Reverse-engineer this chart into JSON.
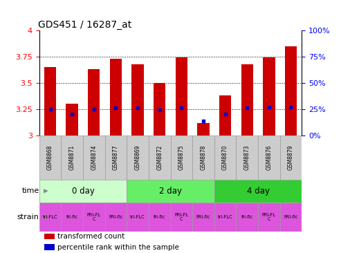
{
  "title": "GDS451 / 16287_at",
  "samples": [
    "GSM8868",
    "GSM8871",
    "GSM8874",
    "GSM8877",
    "GSM8869",
    "GSM8872",
    "GSM8875",
    "GSM8878",
    "GSM8870",
    "GSM8873",
    "GSM8876",
    "GSM8879"
  ],
  "transformed_count": [
    3.65,
    3.3,
    3.63,
    3.73,
    3.68,
    3.5,
    3.74,
    3.12,
    3.38,
    3.68,
    3.74,
    3.85
  ],
  "percentile_rank": [
    25,
    20,
    25,
    26,
    26,
    24,
    26,
    14,
    20,
    26,
    27,
    27
  ],
  "y_min": 3.0,
  "y_max": 4.0,
  "y_ticks": [
    3.0,
    3.25,
    3.5,
    3.75,
    4.0
  ],
  "y_tick_labels": [
    "3",
    "3.25",
    "3.5",
    "3.75",
    "4"
  ],
  "right_y_ticks": [
    0,
    25,
    50,
    75,
    100
  ],
  "right_y_labels": [
    "0%",
    "25%",
    "50%",
    "75%",
    "100%"
  ],
  "dotted_lines": [
    3.25,
    3.5,
    3.75
  ],
  "time_groups": [
    {
      "label": "0 day",
      "start": 0,
      "end": 4,
      "color": "#ccffcc"
    },
    {
      "label": "2 day",
      "start": 4,
      "end": 8,
      "color": "#66ee66"
    },
    {
      "label": "4 day",
      "start": 8,
      "end": 12,
      "color": "#33cc33"
    }
  ],
  "strain_labels": [
    "tri-FLC",
    "fri-flc",
    "FRI-FL\nC",
    "FRI-flc",
    "tri-FLC",
    "fri-flc",
    "FRI-FL\nC",
    "FRI-flc",
    "tri-FLC",
    "fri-flc",
    "FRI-FL\nC",
    "FRI-flc"
  ],
  "strain_color": "#dd55dd",
  "bar_color": "#cc0000",
  "percentile_color": "#0000cc",
  "bar_width": 0.55,
  "sample_box_color": "#cccccc",
  "figsize": [
    4.93,
    3.66
  ],
  "dpi": 100,
  "legend_items": [
    {
      "color": "#cc0000",
      "label": "transformed count"
    },
    {
      "color": "#0000cc",
      "label": "percentile rank within the sample"
    }
  ]
}
